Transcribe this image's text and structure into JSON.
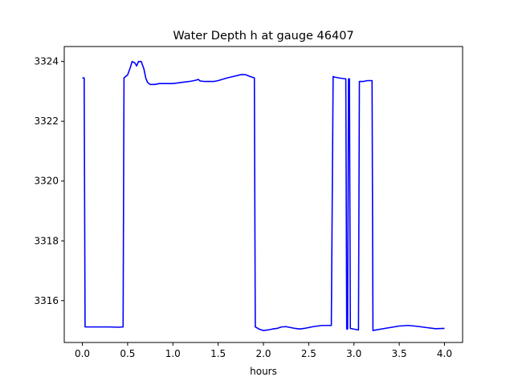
{
  "chart_data": {
    "type": "line",
    "title": "Water Depth h at gauge 46407",
    "xlabel": "hours",
    "ylabel": "",
    "xlim": [
      -0.2,
      4.2
    ],
    "ylim": [
      3314.6,
      3324.5
    ],
    "xticks": [
      0.0,
      0.5,
      1.0,
      1.5,
      2.0,
      2.5,
      3.0,
      3.5,
      4.0
    ],
    "xtick_labels": [
      "0.0",
      "0.5",
      "1.0",
      "1.5",
      "2.0",
      "2.5",
      "3.0",
      "3.5",
      "4.0"
    ],
    "yticks": [
      3316,
      3318,
      3320,
      3322,
      3324
    ],
    "ytick_labels": [
      "3316",
      "3318",
      "3320",
      "3322",
      "3324"
    ],
    "grid": false,
    "series": [
      {
        "color": "#0000ff",
        "x": [
          0.0,
          0.02,
          0.03,
          0.1,
          0.2,
          0.3,
          0.4,
          0.45,
          0.46,
          0.5,
          0.53,
          0.55,
          0.58,
          0.6,
          0.62,
          0.65,
          0.68,
          0.7,
          0.72,
          0.75,
          0.8,
          0.85,
          0.9,
          1.0,
          1.1,
          1.2,
          1.25,
          1.28,
          1.3,
          1.35,
          1.4,
          1.45,
          1.5,
          1.6,
          1.7,
          1.75,
          1.8,
          1.85,
          1.9,
          1.91,
          1.95,
          2.0,
          2.05,
          2.1,
          2.15,
          2.2,
          2.25,
          2.3,
          2.35,
          2.4,
          2.45,
          2.5,
          2.55,
          2.6,
          2.65,
          2.7,
          2.75,
          2.77,
          2.78,
          2.85,
          2.91,
          2.92,
          2.93,
          2.94,
          2.95,
          2.96,
          3.05,
          3.06,
          3.1,
          3.15,
          3.2,
          3.21,
          3.3,
          3.4,
          3.5,
          3.6,
          3.7,
          3.8,
          3.9,
          4.0
        ],
        "y": [
          3323.45,
          3323.45,
          3315.12,
          3315.12,
          3315.12,
          3315.12,
          3315.11,
          3315.12,
          3323.45,
          3323.55,
          3323.8,
          3324.0,
          3323.95,
          3323.85,
          3324.0,
          3324.0,
          3323.75,
          3323.45,
          3323.3,
          3323.23,
          3323.23,
          3323.26,
          3323.26,
          3323.26,
          3323.3,
          3323.34,
          3323.37,
          3323.4,
          3323.35,
          3323.33,
          3323.33,
          3323.33,
          3323.36,
          3323.45,
          3323.52,
          3323.56,
          3323.56,
          3323.5,
          3323.45,
          3315.12,
          3315.05,
          3315.0,
          3315.02,
          3315.05,
          3315.07,
          3315.12,
          3315.13,
          3315.1,
          3315.07,
          3315.05,
          3315.07,
          3315.1,
          3315.13,
          3315.15,
          3315.17,
          3315.17,
          3315.17,
          3323.5,
          3323.48,
          3323.44,
          3323.42,
          3315.05,
          3315.05,
          3323.42,
          3323.42,
          3315.07,
          3315.02,
          3323.33,
          3323.33,
          3323.36,
          3323.36,
          3315.0,
          3315.05,
          3315.1,
          3315.15,
          3315.17,
          3315.14,
          3315.1,
          3315.06,
          3315.07
        ]
      }
    ]
  }
}
